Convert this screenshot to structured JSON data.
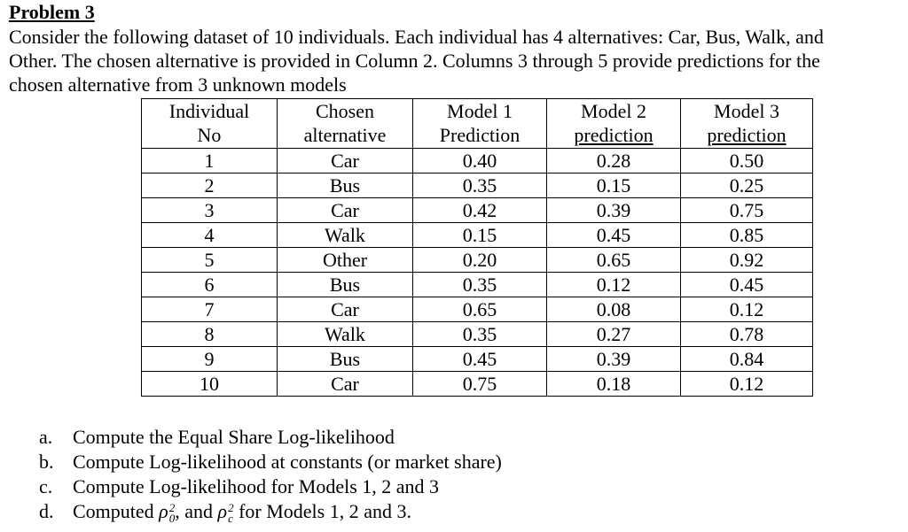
{
  "problem": {
    "title": "Problem 3",
    "intro_lines": [
      "Consider the following dataset of 10 individuals. Each individual has 4 alternatives: Car, Bus, Walk, and",
      "Other. The chosen alternative is provided in Column 2. Columns 3 through 5 provide predictions for the",
      "chosen alternative from 3 unknown models"
    ]
  },
  "table": {
    "headers": {
      "individual": [
        "Individual",
        "No"
      ],
      "chosen": [
        "Chosen",
        "alternative"
      ],
      "model1": [
        "Model 1",
        "Prediction"
      ],
      "model2": [
        "Model 2",
        "prediction"
      ],
      "model3": [
        "Model 3",
        "prediction"
      ]
    },
    "rows": [
      {
        "no": "1",
        "chosen": "Car",
        "m1": "0.40",
        "m2": "0.28",
        "m3": "0.50"
      },
      {
        "no": "2",
        "chosen": "Bus",
        "m1": "0.35",
        "m2": "0.15",
        "m3": "0.25"
      },
      {
        "no": "3",
        "chosen": "Car",
        "m1": "0.42",
        "m2": "0.39",
        "m3": "0.75"
      },
      {
        "no": "4",
        "chosen": "Walk",
        "m1": "0.15",
        "m2": "0.45",
        "m3": "0.85"
      },
      {
        "no": "5",
        "chosen": "Other",
        "m1": "0.20",
        "m2": "0.65",
        "m3": "0.92"
      },
      {
        "no": "6",
        "chosen": "Bus",
        "m1": "0.35",
        "m2": "0.12",
        "m3": "0.45"
      },
      {
        "no": "7",
        "chosen": "Car",
        "m1": "0.65",
        "m2": "0.08",
        "m3": "0.12"
      },
      {
        "no": "8",
        "chosen": "Walk",
        "m1": "0.35",
        "m2": "0.27",
        "m3": "0.78"
      },
      {
        "no": "9",
        "chosen": "Bus",
        "m1": "0.45",
        "m2": "0.39",
        "m3": "0.84"
      },
      {
        "no": "10",
        "chosen": "Car",
        "m1": "0.75",
        "m2": "0.18",
        "m3": "0.12"
      }
    ]
  },
  "questions": [
    {
      "letter": "a.",
      "text": "Compute the Equal Share Log-likelihood"
    },
    {
      "letter": "b.",
      "text": "Compute Log-likelihood at constants (or market share)"
    },
    {
      "letter": "c.",
      "text": "Compute Log-likelihood for Models 1, 2 and 3"
    },
    {
      "letter": "d.",
      "text_before": "Computed ",
      "rho0": "ρ",
      "rho0_sup": "2",
      "rho0_sub": "0",
      "text_mid": ", and ",
      "rhoc": "ρ",
      "rhoc_sup": "2",
      "rhoc_sub": "c",
      "text_after": " for Models 1, 2 and 3."
    }
  ]
}
